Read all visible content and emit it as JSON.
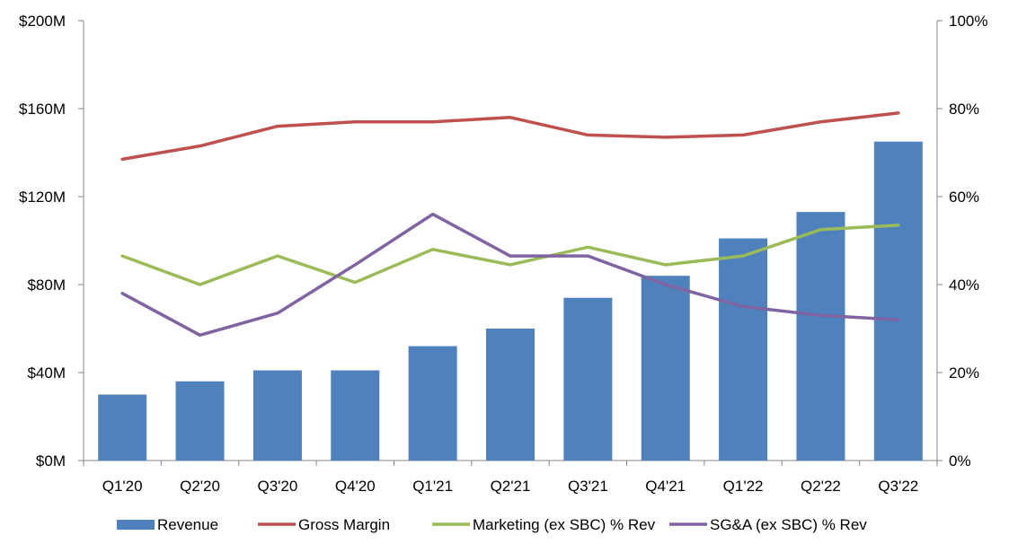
{
  "chart_data": {
    "type": "bar",
    "categories": [
      "Q1'20",
      "Q2'20",
      "Q3'20",
      "Q4'20",
      "Q1'21",
      "Q2'21",
      "Q3'21",
      "Q4'21",
      "Q1'22",
      "Q2'22",
      "Q3'22"
    ],
    "y_left": {
      "ylim": [
        0,
        200
      ],
      "ticks": [
        0,
        40,
        80,
        120,
        160,
        200
      ],
      "tick_labels": [
        "$0M",
        "$40M",
        "$80M",
        "$120M",
        "$160M",
        "$200M"
      ]
    },
    "y_right": {
      "ylim": [
        0,
        100
      ],
      "ticks": [
        0,
        20,
        40,
        60,
        80,
        100
      ],
      "tick_labels": [
        "0%",
        "20%",
        "40%",
        "60%",
        "80%",
        "100%"
      ]
    },
    "series": [
      {
        "name": "Revenue",
        "kind": "bar",
        "axis": "left",
        "color": "#4F81BD",
        "values": [
          30,
          36,
          41,
          41,
          52,
          60,
          74,
          84,
          101,
          113,
          145
        ]
      },
      {
        "name": "Gross Margin",
        "kind": "line",
        "axis": "right",
        "color": "#C0504D",
        "values": [
          68.5,
          71.5,
          76,
          77,
          77,
          78,
          74,
          73.5,
          74,
          77,
          79
        ]
      },
      {
        "name": "Marketing (ex SBC) % Rev",
        "kind": "line",
        "axis": "right",
        "color": "#9BBB59",
        "values": [
          46.5,
          40,
          46.5,
          40.5,
          48,
          44.5,
          48.5,
          44.5,
          46.5,
          52.5,
          53.5
        ]
      },
      {
        "name": "SG&A (ex SBC) % Rev",
        "kind": "line",
        "axis": "right",
        "color": "#8064A2",
        "values": [
          38,
          28.5,
          33.5,
          44.5,
          56,
          46.5,
          46.5,
          40,
          35,
          33,
          32
        ]
      }
    ],
    "grid": false,
    "legend_position": "bottom"
  }
}
